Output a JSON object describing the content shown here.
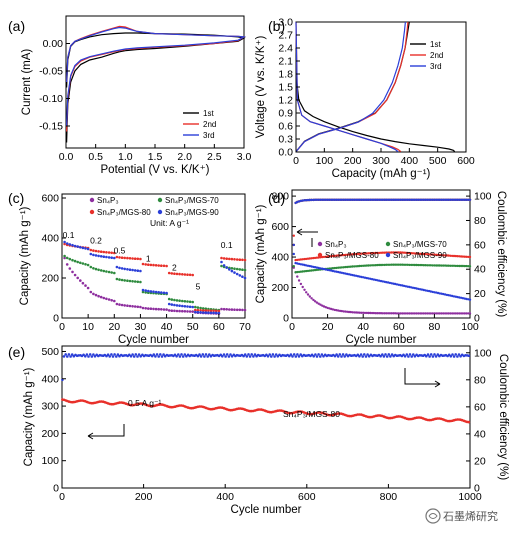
{
  "watermark": "石墨烯研究",
  "chart_data": [
    {
      "panel": "(a)",
      "type": "line",
      "xlabel": "Potential (V vs. K/K⁺)",
      "ylabel": "Current (mA)",
      "xlim": [
        0,
        3.0
      ],
      "ylim": [
        -0.19,
        0.05
      ],
      "xticks": [
        "0.0",
        "0.5",
        "1.0",
        "1.5",
        "2.0",
        "2.5",
        "3.0"
      ],
      "xtick_values": [
        0,
        0.5,
        1.0,
        1.5,
        2.0,
        2.5,
        3.0
      ],
      "yticks": [
        "0.00",
        "-0.05",
        "-0.10",
        "-0.15"
      ],
      "ytick_values": [
        0,
        -0.05,
        -0.1,
        -0.15
      ],
      "legend": "right",
      "series": [
        {
          "name": "1st",
          "color": "#000000",
          "x": [
            0.01,
            0.03,
            0.08,
            0.15,
            0.25,
            0.4,
            0.6,
            0.8,
            0.9,
            1.0,
            1.2,
            1.5,
            2.0,
            2.5,
            2.9,
            3.0,
            2.9,
            2.5,
            2.0,
            1.5,
            1.2,
            1.0,
            0.8,
            0.6,
            0.4,
            0.25,
            0.15,
            0.08,
            0.03,
            0.01
          ],
          "y": [
            -0.18,
            -0.11,
            -0.07,
            -0.05,
            -0.038,
            -0.03,
            -0.025,
            -0.018,
            -0.015,
            -0.013,
            -0.011,
            -0.009,
            -0.005,
            0.0,
            0.004,
            0.01,
            0.012,
            0.015,
            0.017,
            0.018,
            0.019,
            0.019,
            0.018,
            0.016,
            0.012,
            0.007,
            0.003,
            -0.005,
            -0.03,
            -0.08
          ]
        },
        {
          "name": "2nd",
          "color": "#e8302a",
          "x": [
            0.01,
            0.03,
            0.08,
            0.15,
            0.25,
            0.4,
            0.6,
            0.8,
            0.9,
            1.0,
            1.2,
            1.5,
            2.0,
            2.5,
            2.9,
            3.0,
            2.9,
            2.5,
            2.0,
            1.5,
            1.2,
            1.0,
            0.9,
            0.8,
            0.6,
            0.4,
            0.25,
            0.15,
            0.08,
            0.03,
            0.01
          ],
          "y": [
            -0.16,
            -0.1,
            -0.06,
            -0.042,
            -0.032,
            -0.025,
            -0.02,
            -0.015,
            -0.013,
            -0.011,
            -0.009,
            -0.007,
            -0.004,
            0.0,
            0.005,
            0.012,
            0.013,
            0.014,
            0.016,
            0.018,
            0.022,
            0.03,
            0.031,
            0.028,
            0.022,
            0.015,
            0.009,
            0.004,
            -0.004,
            -0.025,
            -0.07
          ]
        },
        {
          "name": "3rd",
          "color": "#2b3fd8",
          "x": [
            0.01,
            0.03,
            0.08,
            0.15,
            0.25,
            0.4,
            0.6,
            0.8,
            0.9,
            1.0,
            1.2,
            1.5,
            2.0,
            2.5,
            2.9,
            3.0,
            2.9,
            2.5,
            2.0,
            1.5,
            1.2,
            1.0,
            0.9,
            0.8,
            0.6,
            0.4,
            0.25,
            0.15,
            0.08,
            0.03,
            0.01
          ],
          "y": [
            -0.15,
            -0.095,
            -0.058,
            -0.04,
            -0.03,
            -0.024,
            -0.019,
            -0.014,
            -0.012,
            -0.01,
            -0.008,
            -0.006,
            -0.003,
            0.001,
            0.006,
            0.012,
            0.013,
            0.014,
            0.016,
            0.018,
            0.022,
            0.028,
            0.029,
            0.027,
            0.021,
            0.014,
            0.008,
            0.004,
            -0.004,
            -0.025,
            -0.07
          ]
        }
      ]
    },
    {
      "panel": "(b)",
      "type": "line",
      "xlabel": "Capacity (mAh g⁻¹)",
      "ylabel": "Voltage (V vs. K/K⁺)",
      "xlim": [
        0,
        600
      ],
      "ylim": [
        0,
        3.0
      ],
      "xticks": [
        "0",
        "100",
        "200",
        "300",
        "400",
        "500",
        "600"
      ],
      "xtick_values": [
        0,
        100,
        200,
        300,
        400,
        500,
        600
      ],
      "yticks": [
        "0.0",
        "0.3",
        "0.6",
        "0.9",
        "1.2",
        "1.5",
        "1.8",
        "2.1",
        "2.4",
        "2.7",
        "3.0"
      ],
      "ytick_values": [
        0,
        0.3,
        0.6,
        0.9,
        1.2,
        1.5,
        1.8,
        2.1,
        2.4,
        2.7,
        3.0
      ],
      "legend": "top-right",
      "series": [
        {
          "name": "1st",
          "color": "#000000",
          "discharge_x": [
            0,
            3,
            10,
            30,
            60,
            100,
            150,
            200,
            250,
            300,
            350,
            400,
            450,
            500,
            540,
            555,
            560
          ],
          "discharge_y": [
            2.4,
            1.6,
            1.2,
            0.95,
            0.82,
            0.7,
            0.58,
            0.47,
            0.38,
            0.3,
            0.24,
            0.19,
            0.15,
            0.11,
            0.07,
            0.04,
            0.01
          ],
          "charge_x": [
            0,
            30,
            80,
            150,
            220,
            280,
            320,
            350,
            370,
            385,
            395,
            400
          ],
          "charge_y": [
            0.01,
            0.25,
            0.42,
            0.55,
            0.7,
            0.9,
            1.2,
            1.6,
            2.0,
            2.4,
            2.8,
            3.0
          ]
        },
        {
          "name": "2nd",
          "color": "#e8302a",
          "discharge_x": [
            0,
            5,
            20,
            50,
            100,
            150,
            200,
            250,
            300,
            340,
            360,
            370
          ],
          "discharge_y": [
            3.0,
            1.2,
            0.85,
            0.7,
            0.6,
            0.5,
            0.4,
            0.3,
            0.2,
            0.12,
            0.06,
            0.01
          ],
          "charge_x": [
            0,
            30,
            80,
            150,
            220,
            280,
            320,
            350,
            370,
            385,
            392,
            395
          ],
          "charge_y": [
            0.01,
            0.24,
            0.41,
            0.54,
            0.69,
            0.89,
            1.2,
            1.6,
            2.0,
            2.4,
            2.8,
            3.0
          ]
        },
        {
          "name": "3rd",
          "color": "#2b3fd8",
          "discharge_x": [
            0,
            5,
            20,
            50,
            100,
            150,
            200,
            250,
            300,
            330,
            350,
            360
          ],
          "discharge_y": [
            3.0,
            1.2,
            0.85,
            0.7,
            0.6,
            0.5,
            0.4,
            0.3,
            0.2,
            0.12,
            0.06,
            0.01
          ],
          "charge_x": [
            0,
            30,
            80,
            150,
            220,
            270,
            310,
            340,
            360,
            375,
            383,
            386
          ],
          "charge_y": [
            0.01,
            0.24,
            0.41,
            0.54,
            0.69,
            0.89,
            1.2,
            1.6,
            2.0,
            2.4,
            2.8,
            3.0
          ]
        }
      ]
    },
    {
      "panel": "(c)",
      "type": "scatter",
      "xlabel": "Cycle number",
      "ylabel": "Capacity (mAh g⁻¹)",
      "xlim": [
        0,
        70
      ],
      "ylim": [
        0,
        620
      ],
      "xticks": [
        "0",
        "10",
        "20",
        "30",
        "40",
        "50",
        "60",
        "70"
      ],
      "xtick_values": [
        0,
        10,
        20,
        30,
        40,
        50,
        60,
        70
      ],
      "yticks": [
        "0",
        "200",
        "400",
        "600"
      ],
      "ytick_values": [
        0,
        200,
        400,
        600
      ],
      "unit_label": "Unit: A g⁻¹",
      "rate_labels": [
        {
          "text": "0.1",
          "x": 2.5,
          "y": 400
        },
        {
          "text": "0.2",
          "x": 13,
          "y": 372
        },
        {
          "text": "0.5",
          "x": 22,
          "y": 323
        },
        {
          "text": "1",
          "x": 33,
          "y": 283
        },
        {
          "text": "2",
          "x": 43,
          "y": 237
        },
        {
          "text": "5",
          "x": 52,
          "y": 142
        },
        {
          "text": "0.1",
          "x": 63,
          "y": 350
        }
      ],
      "segments": [
        {
          "rate": "0.1",
          "start": 1,
          "end": 10
        },
        {
          "rate": "0.2",
          "start": 11,
          "end": 20
        },
        {
          "rate": "0.5",
          "start": 21,
          "end": 30
        },
        {
          "rate": "1",
          "start": 31,
          "end": 40
        },
        {
          "rate": "2",
          "start": 41,
          "end": 50
        },
        {
          "rate": "5",
          "start": 51,
          "end": 60
        },
        {
          "rate": "0.1",
          "start": 61,
          "end": 70
        }
      ],
      "legend": "top",
      "series": [
        {
          "name": "Sn₄P₃",
          "color": "#8e2f9f",
          "marker": "circle",
          "levels": [
            [
              300,
              150
            ],
            [
              130,
              85
            ],
            [
              70,
              55
            ],
            [
              50,
              42
            ],
            [
              38,
              32
            ],
            [
              28,
              22
            ],
            [
              45,
              40
            ]
          ]
        },
        {
          "name": "Sn₄P₃/MGS-70",
          "color": "#2e8b3e",
          "marker": "circle",
          "levels": [
            [
              310,
              265
            ],
            [
              255,
              225
            ],
            [
              195,
              180
            ],
            [
              130,
              120
            ],
            [
              95,
              80
            ],
            [
              55,
              40
            ],
            [
              260,
              240
            ]
          ]
        },
        {
          "name": "Sn₄P₃/MGS-80",
          "color": "#e8302a",
          "marker": "circle",
          "levels": [
            [
              370,
              350
            ],
            [
              340,
              325
            ],
            [
              305,
              295
            ],
            [
              270,
              260
            ],
            [
              225,
              215
            ],
            [
              40,
              35
            ],
            [
              300,
              290
            ]
          ]
        },
        {
          "name": "Sn₄P₃/MGS-90",
          "color": "#2b3fd8",
          "marker": "circle",
          "levels": [
            [
              380,
              345
            ],
            [
              320,
              300
            ],
            [
              255,
              235
            ],
            [
              140,
              125
            ],
            [
              70,
              55
            ],
            [
              30,
              25
            ],
            [
              280,
              200
            ]
          ]
        }
      ]
    },
    {
      "panel": "(d)",
      "type": "scatter",
      "xlabel": "Cycle number",
      "ylabel": "Capacity (mAh g⁻¹)",
      "y2label": "Coulombic efficiency (%)",
      "xlim": [
        0,
        100
      ],
      "ylim": [
        0,
        840
      ],
      "y2lim": [
        0,
        105
      ],
      "xticks": [
        "0",
        "20",
        "40",
        "60",
        "80",
        "100"
      ],
      "xtick_values": [
        0,
        20,
        40,
        60,
        80,
        100
      ],
      "yticks": [
        "0",
        "200",
        "400",
        "600",
        "800"
      ],
      "ytick_values": [
        0,
        200,
        400,
        600,
        800
      ],
      "y2ticks": [
        "0",
        "20",
        "40",
        "60",
        "80",
        "100"
      ],
      "y2tick_values": [
        0,
        20,
        40,
        60,
        80,
        100
      ],
      "legend": "center",
      "series": [
        {
          "name": "Sn₄P₃",
          "color": "#8e2f9f",
          "first": 330,
          "start": 300,
          "mid": 60,
          "end": 30,
          "decay": "exp"
        },
        {
          "name": "Sn₄P₃/MGS-70",
          "color": "#2e8b3e",
          "first": 340,
          "start": 300,
          "mid": 350,
          "end": 340,
          "decay": "rise"
        },
        {
          "name": "Sn₄P₃/MGS-80",
          "color": "#e8302a",
          "first": 540,
          "start": 380,
          "mid": 430,
          "end": 400,
          "decay": "rise"
        },
        {
          "name": "Sn₄P₃/MGS-90",
          "color": "#2b3fd8",
          "first": 420,
          "start": 360,
          "mid": 230,
          "end": 120,
          "decay": "linear"
        }
      ],
      "coulombic_efficiency": {
        "first": 60,
        "steady": 97,
        "unit": "%"
      }
    },
    {
      "panel": "(e)",
      "type": "scatter",
      "xlabel": "Cycle number",
      "ylabel": "Capacity (mAh g⁻¹)",
      "y2label": "Coulombic efficiency (%)",
      "xlim": [
        0,
        1000
      ],
      "ylim": [
        0,
        520
      ],
      "y2lim": [
        0,
        105
      ],
      "xticks": [
        "0",
        "200",
        "400",
        "600",
        "800",
        "1000"
      ],
      "xtick_values": [
        0,
        200,
        400,
        600,
        800,
        1000
      ],
      "yticks": [
        "0",
        "100",
        "200",
        "300",
        "400",
        "500"
      ],
      "ytick_values": [
        0,
        100,
        200,
        300,
        400,
        500
      ],
      "y2ticks": [
        "0",
        "20",
        "40",
        "60",
        "80",
        "100"
      ],
      "y2tick_values": [
        0,
        20,
        40,
        60,
        80,
        100
      ],
      "rate_label": "0.5 A g⁻¹",
      "series_label": "Sn₄P₃/MGS-80",
      "capacity": {
        "color": "#e8302a",
        "start": 320,
        "end": 245
      },
      "coulombic_efficiency": {
        "color": "#2b3fd8",
        "first": 80,
        "steady": 98
      }
    }
  ]
}
